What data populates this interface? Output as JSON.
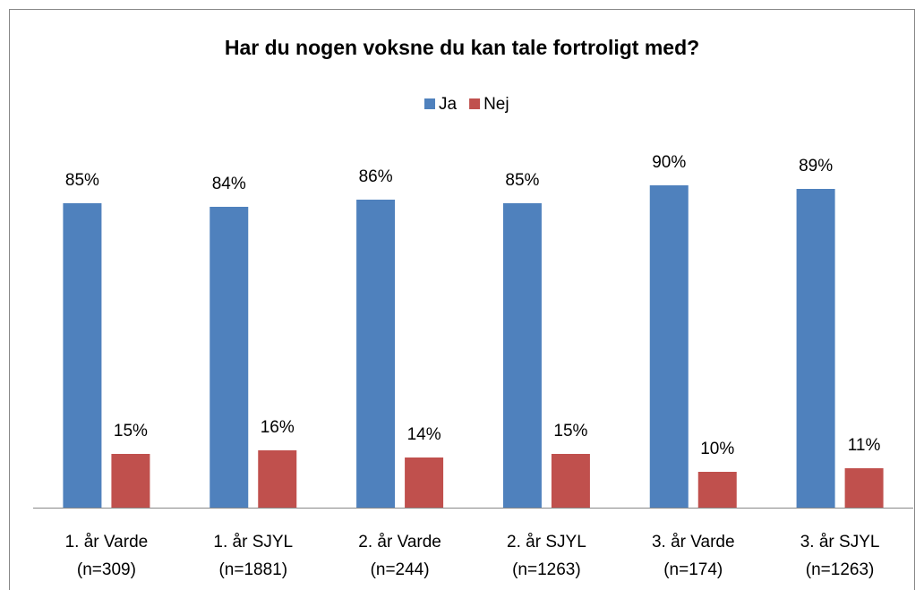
{
  "chart_data": {
    "type": "bar",
    "title": "Har du nogen voksne du kan tale fortroligt med?",
    "categories": [
      [
        "1. år Varde",
        "(n=309)"
      ],
      [
        "1. år SJYL",
        "(n=1881)"
      ],
      [
        "2. år Varde",
        "(n=244)"
      ],
      [
        "2. år SJYL",
        "(n=1263)"
      ],
      [
        "3. år Varde",
        "(n=174)"
      ],
      [
        "3. år SJYL",
        "(n=1263)"
      ]
    ],
    "series": [
      {
        "name": "Ja",
        "color": "#4f81bd",
        "values": [
          85,
          84,
          86,
          85,
          90,
          89
        ],
        "value_labels": [
          "85%",
          "84%",
          "86%",
          "85%",
          "90%",
          "89%"
        ]
      },
      {
        "name": "Nej",
        "color": "#c0504d",
        "values": [
          15,
          16,
          14,
          15,
          10,
          11
        ],
        "value_labels": [
          "15%",
          "16%",
          "14%",
          "15%",
          "10%",
          "11%"
        ]
      }
    ],
    "ylim": [
      0,
      100
    ],
    "legend": "top"
  }
}
